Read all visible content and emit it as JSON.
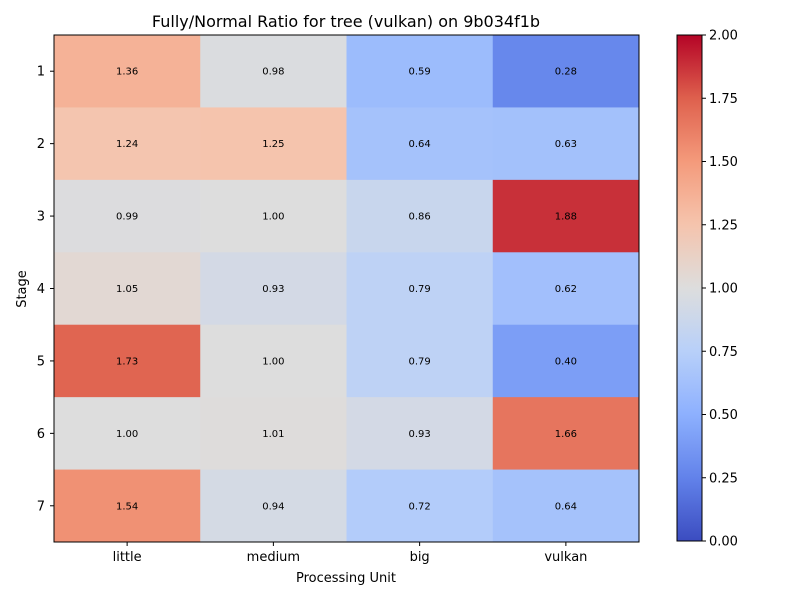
{
  "chart_data": {
    "type": "heatmap",
    "title": "Fully/Normal Ratio for tree (vulkan) on 9b034f1b",
    "xlabel": "Processing Unit",
    "ylabel": "Stage",
    "x_categories": [
      "little",
      "medium",
      "big",
      "vulkan"
    ],
    "y_categories": [
      "1",
      "2",
      "3",
      "4",
      "5",
      "6",
      "7"
    ],
    "values": [
      [
        1.36,
        0.98,
        0.59,
        0.28
      ],
      [
        1.24,
        1.25,
        0.64,
        0.63
      ],
      [
        0.99,
        1.0,
        0.86,
        1.88
      ],
      [
        1.05,
        0.93,
        0.79,
        0.62
      ],
      [
        1.73,
        1.0,
        0.79,
        0.4
      ],
      [
        1.0,
        1.01,
        0.93,
        1.66
      ],
      [
        1.54,
        0.94,
        0.72,
        0.64
      ]
    ],
    "value_labels": [
      [
        "1.36",
        "0.98",
        "0.59",
        "0.28"
      ],
      [
        "1.24",
        "1.25",
        "0.64",
        "0.63"
      ],
      [
        "0.99",
        "1.00",
        "0.86",
        "1.88"
      ],
      [
        "1.05",
        "0.93",
        "0.79",
        "0.62"
      ],
      [
        "1.73",
        "1.00",
        "0.79",
        "0.40"
      ],
      [
        "1.00",
        "1.01",
        "0.93",
        "1.66"
      ],
      [
        "1.54",
        "0.94",
        "0.72",
        "0.64"
      ]
    ],
    "colormap": "coolwarm",
    "vmin": 0.0,
    "vmax": 2.0,
    "colorbar_ticks": [
      "0.00",
      "0.25",
      "0.50",
      "0.75",
      "1.00",
      "1.25",
      "1.50",
      "1.75",
      "2.00"
    ],
    "grid": false
  }
}
